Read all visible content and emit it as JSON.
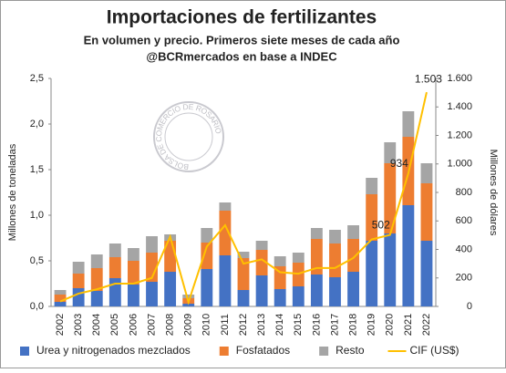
{
  "chart_data": {
    "type": "bar-line",
    "title": "Importaciones de fertilizantes",
    "subtitle": "En volumen y precio. Primeros siete meses de cada año",
    "subtitle2": "@BCRmercados en base a INDEC",
    "watermark": "BOLSA DE COMERCIO DE ROSARIO",
    "ylabel": "Millones de toneladas",
    "y2label": "Millones de dólares",
    "categories": [
      "2002",
      "2003",
      "2004",
      "2005",
      "2006",
      "2007",
      "2008",
      "2009",
      "2010",
      "2011",
      "2012",
      "2013",
      "2014",
      "2015",
      "2016",
      "2017",
      "2018",
      "2019",
      "2020",
      "2021",
      "2022"
    ],
    "series": [
      {
        "name": "Urea y nitrogenados mezclados",
        "color": "#4472c4",
        "values": [
          0.05,
          0.2,
          0.17,
          0.31,
          0.24,
          0.27,
          0.38,
          0.03,
          0.41,
          0.56,
          0.18,
          0.34,
          0.19,
          0.22,
          0.35,
          0.32,
          0.38,
          0.72,
          0.8,
          1.11,
          0.72
        ]
      },
      {
        "name": "Fosfatados",
        "color": "#ed7d31",
        "values": [
          0.08,
          0.16,
          0.25,
          0.23,
          0.26,
          0.32,
          0.34,
          0.06,
          0.29,
          0.49,
          0.35,
          0.28,
          0.25,
          0.26,
          0.39,
          0.37,
          0.36,
          0.51,
          0.77,
          0.75,
          0.63
        ]
      },
      {
        "name": "Resto",
        "color": "#a5a5a5",
        "values": [
          0.05,
          0.13,
          0.15,
          0.15,
          0.14,
          0.18,
          0.07,
          0.04,
          0.16,
          0.09,
          0.07,
          0.1,
          0.11,
          0.11,
          0.12,
          0.15,
          0.15,
          0.18,
          0.23,
          0.28,
          0.22
        ]
      },
      {
        "name": "CIF (US$)",
        "color": "#ffc000",
        "axis": "y2",
        "values": [
          35,
          90,
          120,
          160,
          160,
          200,
          490,
          30,
          420,
          570,
          300,
          330,
          240,
          230,
          270,
          270,
          340,
          470,
          502,
          934,
          1503
        ],
        "value_labels": [
          null,
          null,
          null,
          null,
          null,
          null,
          null,
          null,
          null,
          null,
          null,
          null,
          null,
          null,
          null,
          null,
          null,
          null,
          "502",
          "934",
          "1.503"
        ]
      }
    ],
    "ylim": [
      0,
      2.5
    ],
    "yticks": [
      {
        "value": 0,
        "label": "0,0"
      },
      {
        "value": 0.5,
        "label": "0,5"
      },
      {
        "value": 1,
        "label": "1,0"
      },
      {
        "value": 1.5,
        "label": "1,5"
      },
      {
        "value": 2,
        "label": "2,0"
      },
      {
        "value": 2.5,
        "label": "2,5"
      }
    ],
    "y2lim": [
      0,
      1600
    ],
    "y2ticks": [
      0,
      200,
      400,
      600,
      800,
      {
        "value": 1000,
        "label": "1.000"
      },
      {
        "value": 1200,
        "label": "1.200"
      },
      {
        "value": 1400,
        "label": "1.400"
      },
      {
        "value": 1600,
        "label": "1.600"
      }
    ],
    "legend": "bottom"
  }
}
